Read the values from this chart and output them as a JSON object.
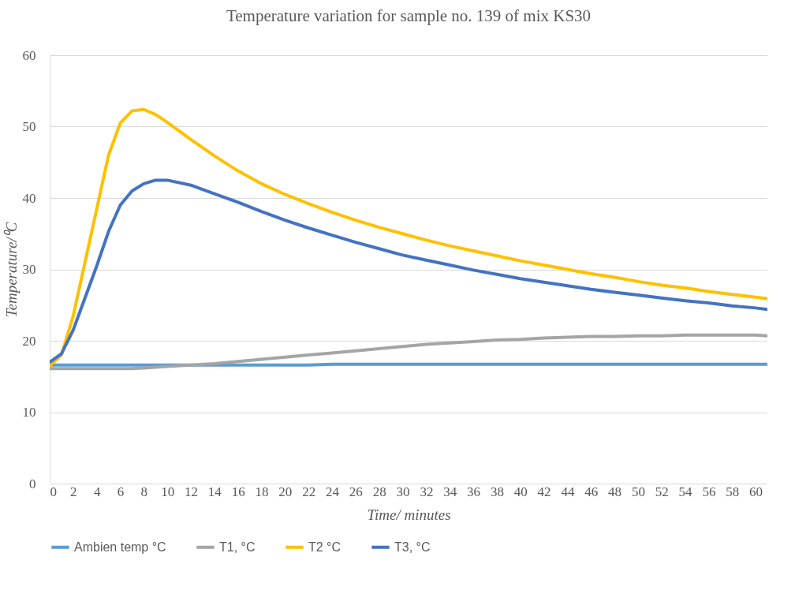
{
  "chart_data": {
    "type": "line",
    "title": "Temperature variation for sample no. 139 of mix KS30",
    "xlabel": "Time/ minutes",
    "ylabel": "Temperature/⁰C",
    "x": [
      0,
      1,
      2,
      3,
      4,
      5,
      6,
      7,
      8,
      9,
      10,
      12,
      14,
      16,
      18,
      20,
      22,
      24,
      26,
      28,
      30,
      32,
      34,
      36,
      38,
      40,
      42,
      44,
      46,
      48,
      50,
      52,
      54,
      56,
      58,
      60,
      61
    ],
    "xlim": [
      0,
      61
    ],
    "xticks": [
      0,
      2,
      4,
      6,
      8,
      10,
      12,
      14,
      16,
      18,
      20,
      22,
      24,
      26,
      28,
      30,
      32,
      34,
      36,
      38,
      40,
      42,
      44,
      46,
      48,
      50,
      52,
      54,
      56,
      58,
      60
    ],
    "ylim": [
      0,
      60
    ],
    "yticks": [
      0,
      10,
      20,
      30,
      40,
      50,
      60
    ],
    "grid": "y",
    "legend": "bottom",
    "marker": "none",
    "line_style": "solid",
    "series": [
      {
        "name": "Ambien temp °C",
        "color": "#5b9bd5",
        "values": [
          16.6,
          16.6,
          16.6,
          16.6,
          16.6,
          16.6,
          16.6,
          16.6,
          16.6,
          16.6,
          16.6,
          16.6,
          16.6,
          16.6,
          16.6,
          16.6,
          16.6,
          16.7,
          16.7,
          16.7,
          16.7,
          16.7,
          16.7,
          16.7,
          16.7,
          16.7,
          16.7,
          16.7,
          16.7,
          16.7,
          16.7,
          16.7,
          16.7,
          16.7,
          16.7,
          16.7,
          16.7
        ]
      },
      {
        "name": "T1, °C",
        "color": "#a5a5a5",
        "values": [
          16.1,
          16.1,
          16.1,
          16.1,
          16.1,
          16.1,
          16.1,
          16.1,
          16.2,
          16.3,
          16.4,
          16.6,
          16.8,
          17.1,
          17.4,
          17.7,
          18.0,
          18.3,
          18.6,
          18.9,
          19.2,
          19.5,
          19.7,
          19.9,
          20.1,
          20.2,
          20.4,
          20.5,
          20.6,
          20.6,
          20.7,
          20.7,
          20.8,
          20.8,
          20.8,
          20.8,
          20.7
        ]
      },
      {
        "name": "T2 °C",
        "color": "#ffc000",
        "values": [
          16.5,
          18.0,
          23.5,
          31.0,
          38.5,
          46.0,
          50.5,
          52.2,
          52.4,
          51.7,
          50.6,
          48.2,
          45.9,
          43.8,
          42.0,
          40.5,
          39.2,
          38.0,
          36.9,
          35.9,
          35.0,
          34.1,
          33.3,
          32.6,
          31.9,
          31.2,
          30.6,
          30.0,
          29.4,
          28.9,
          28.3,
          27.8,
          27.4,
          26.9,
          26.5,
          26.1,
          25.9
        ]
      },
      {
        "name": "T3, °C",
        "color": "#4472c4",
        "values": [
          17.0,
          18.2,
          21.5,
          26.0,
          30.5,
          35.3,
          39.0,
          41.0,
          42.0,
          42.5,
          42.5,
          41.8,
          40.6,
          39.4,
          38.1,
          36.9,
          35.8,
          34.8,
          33.8,
          32.9,
          32.0,
          31.3,
          30.6,
          29.9,
          29.3,
          28.7,
          28.2,
          27.7,
          27.2,
          26.8,
          26.4,
          26.0,
          25.6,
          25.3,
          24.9,
          24.6,
          24.4
        ]
      }
    ]
  }
}
